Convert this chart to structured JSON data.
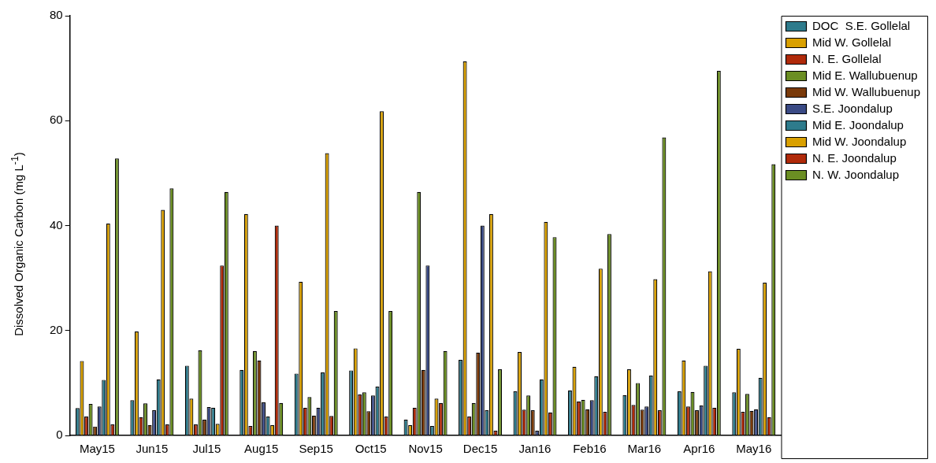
{
  "chart_data": {
    "type": "bar",
    "ylabel": "Dissolved Organic Carbon (mg L$^{-1}$)",
    "categories": [
      "May15",
      "Jun15",
      "Jul15",
      "Aug15",
      "Sep15",
      "Oct15",
      "Nov15",
      "Dec15",
      "Jan16",
      "Feb16",
      "Mar16",
      "Apr16",
      "May16"
    ],
    "series": [
      {
        "name": "DOC  S.E. Gollelal",
        "color": "#2e7b8c",
        "values": [
          5.2,
          6.7,
          13.3,
          12.5,
          11.8,
          12.4,
          3.0,
          14.4,
          8.4,
          8.6,
          7.7,
          8.4,
          8.2
        ]
      },
      {
        "name": "Mid W. Gollelal",
        "color": "#d9a000",
        "values": [
          14.2,
          19.8,
          7.0,
          42.2,
          29.3,
          16.6,
          2.0,
          71.3,
          15.9,
          13.1,
          12.6,
          14.3,
          16.5
        ]
      },
      {
        "name": "N. E. Gollelal",
        "color": "#b02a0a",
        "values": [
          3.6,
          3.5,
          2.1,
          1.8,
          5.3,
          7.8,
          5.3,
          3.6,
          4.9,
          6.5,
          5.8,
          5.5,
          4.5
        ]
      },
      {
        "name": "Mid E. Wallubuenup",
        "color": "#6b8e23",
        "values": [
          6.0,
          6.1,
          16.2,
          16.1,
          7.3,
          8.2,
          46.4,
          6.2,
          7.6,
          6.8,
          10.0,
          8.3,
          7.9
        ]
      },
      {
        "name": "Mid W. Wallubuenup",
        "color": "#7a3a0a",
        "values": [
          1.7,
          2.0,
          3.0,
          14.3,
          3.8,
          4.6,
          12.5,
          15.8,
          4.8,
          5.0,
          4.9,
          4.8,
          4.7
        ]
      },
      {
        "name": "S.E. Joondalup",
        "color": "#3a4a85",
        "values": [
          5.5,
          4.8,
          5.4,
          6.3,
          5.3,
          7.6,
          32.4,
          40.0,
          0.9,
          6.7,
          5.5,
          5.7,
          5.0
        ]
      },
      {
        "name": "Mid E. Joondalup",
        "color": "#2e7b8c",
        "values": [
          10.6,
          10.7,
          5.3,
          3.6,
          12.0,
          9.3,
          1.8,
          4.8,
          10.7,
          11.3,
          11.4,
          13.3,
          11.0
        ]
      },
      {
        "name": "Mid W. Joondalup",
        "color": "#d9a000",
        "values": [
          40.4,
          43.0,
          2.2,
          2.0,
          53.8,
          61.8,
          7.0,
          42.2,
          40.7,
          31.8,
          29.8,
          31.3,
          29.1
        ]
      },
      {
        "name": "N. E. Joondalup",
        "color": "#b02a0a",
        "values": [
          2.1,
          2.1,
          32.4,
          40.0,
          3.7,
          3.6,
          6.2,
          0.9,
          4.4,
          4.5,
          4.8,
          5.3,
          3.5
        ]
      },
      {
        "name": "N. W. Joondalup",
        "color": "#6b8e23",
        "values": [
          52.8,
          47.1,
          46.4,
          6.2,
          23.7,
          23.7,
          16.1,
          12.6,
          37.8,
          38.4,
          56.8,
          69.5,
          51.7
        ]
      }
    ],
    "ylim": [
      0,
      80
    ],
    "yticks": [
      0,
      20,
      40,
      60,
      80
    ],
    "grid": false,
    "legend": "top right"
  }
}
